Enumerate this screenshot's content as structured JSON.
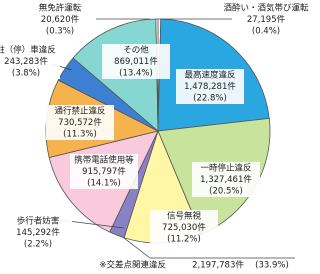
{
  "chart_data": {
    "type": "pie",
    "categories": [
      "酒酔い・酒気帯び運転",
      "最高速度違反",
      "一時停止違反",
      "信号無視",
      "歩行者妨害",
      "携帯電話使用等",
      "通行禁止違反",
      "駐（停）車違反",
      "その他",
      "無免許運転"
    ],
    "values": [
      0.4,
      22.8,
      20.5,
      11.2,
      2.2,
      14.1,
      11.3,
      3.8,
      13.4,
      0.3
    ],
    "value_labels": [
      "(0.4%)",
      "(22.8%)",
      "(20.5%)",
      "(11.2%)",
      "(2.2%)",
      "(14.1%)",
      "(11.3%)",
      "(3.8%)",
      "(13.4%)",
      "(0.3%)"
    ],
    "counts": [
      27195,
      1478281,
      1327461,
      725030,
      145292,
      915797,
      730572,
      243283,
      869011,
      20620
    ],
    "count_labels": [
      "27,195件",
      "1,478,281件",
      "1,327,461件",
      "725,030件",
      "145,292件",
      "915,797件",
      "730,572件",
      "243,283件",
      "869,011件",
      "20,620件"
    ],
    "colors": [
      "#ffffff",
      "#2aa6e0",
      "#c8e49c",
      "#fff6a6",
      "#8a80c6",
      "#f9c9dc",
      "#f6b24c",
      "#3d7fd2",
      "#86d6d2",
      "#ffffff"
    ],
    "note": [
      "※交差点関連違反",
      "2,197,783件",
      "(33.9%)"
    ]
  }
}
